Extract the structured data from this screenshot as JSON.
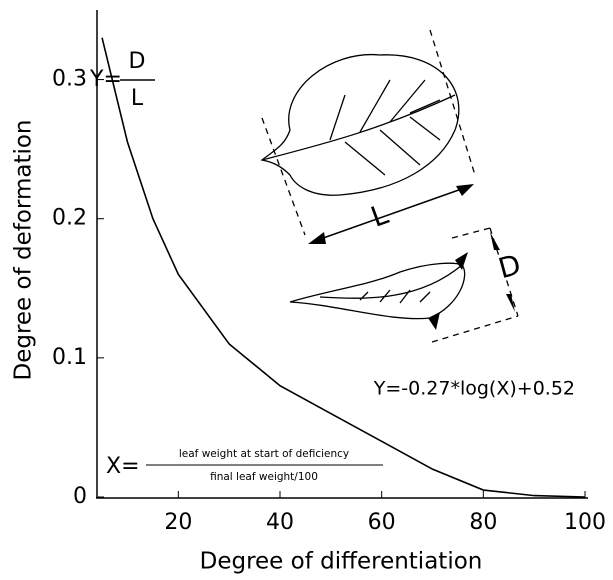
{
  "chart_data": {
    "type": "line",
    "x_label": "Degree of differentiation",
    "y_label": "Degree of deformation",
    "x": [
      5,
      10,
      15,
      20,
      30,
      40,
      50,
      60,
      70,
      80,
      90,
      100
    ],
    "series": [
      {
        "color": "#000000",
        "values": [
          0.33,
          0.255,
          0.2,
          0.16,
          0.11,
          0.08,
          0.06,
          0.04,
          0.02,
          0.005,
          0.001,
          0
        ]
      }
    ],
    "xlim": [
      4,
      100
    ],
    "xticks": [
      20,
      40,
      60,
      80,
      100
    ],
    "ylim": [
      0,
      0.35
    ],
    "yticks": [
      0,
      0.1,
      0.2,
      0.3
    ],
    "grid": false,
    "annotations": {
      "ratio_lhs": "Y=",
      "ratio_num": "D",
      "ratio_den": "L",
      "leaf_length": "L",
      "leaf_depth": "D",
      "fit": "Y=-0.27*log(X)+0.52",
      "x_def_lhs": "X=",
      "x_def_num": "leaf weight at start of deficiency",
      "x_def_den": "final leaf weight/100"
    }
  }
}
